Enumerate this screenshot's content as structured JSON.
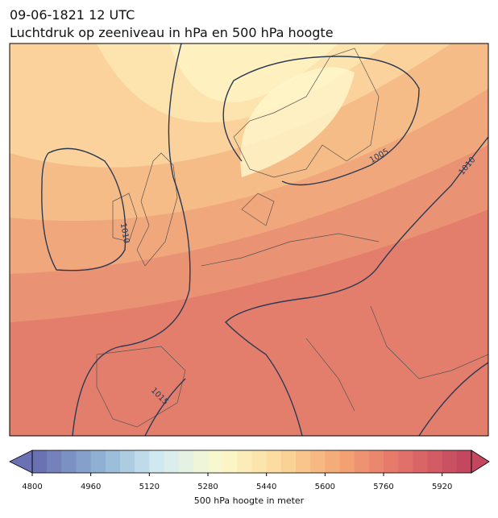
{
  "header": {
    "date": "09-06-1821 12 UTC",
    "title": "Luchtdruk op zeeniveau in hPa en 500 hPa hoogte"
  },
  "map": {
    "contour_labels": [
      "1010",
      "1005",
      "1010",
      "1015"
    ]
  },
  "colorbar": {
    "label": "500 hPa hoogte in meter",
    "lim": [
      4800,
      6000
    ],
    "step": 40,
    "ticks": [
      4800,
      4960,
      5120,
      5280,
      5440,
      5600,
      5760,
      5920
    ],
    "colors": [
      "#6b72b3",
      "#8fb2d4",
      "#d5ecf2",
      "#fbf9cc",
      "#fcd79a",
      "#f4a374",
      "#e2716a",
      "#c3475f"
    ]
  }
}
